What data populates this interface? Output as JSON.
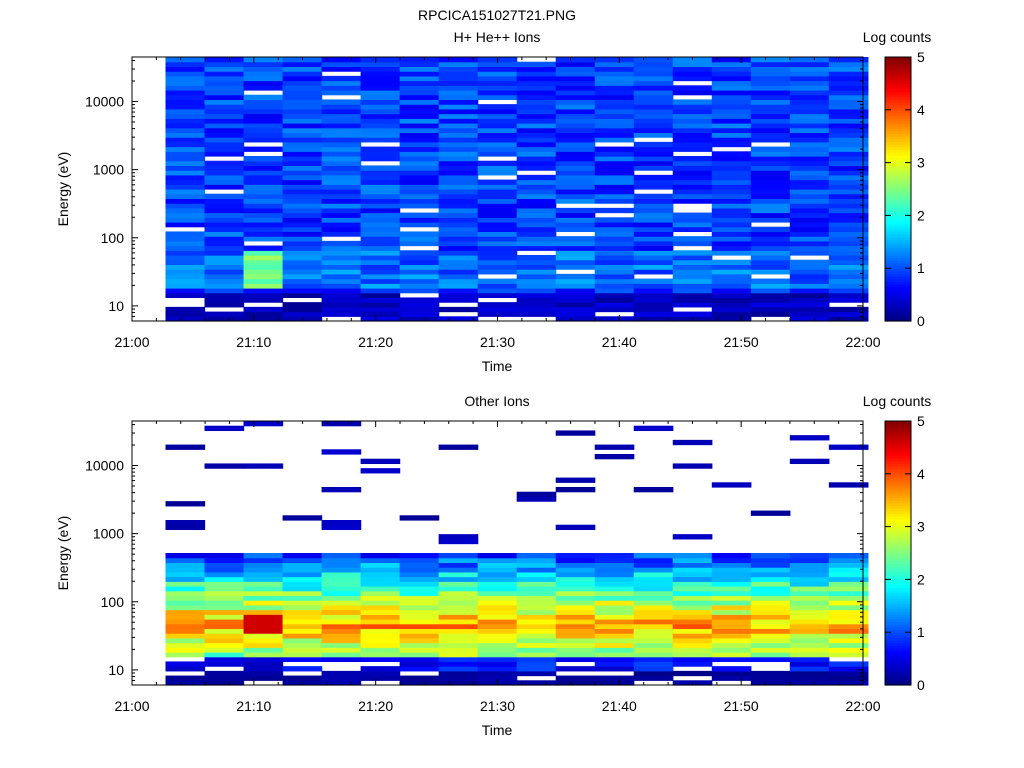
{
  "page": {
    "title": "RPCICA151027T21.PNG"
  },
  "chart_data": [
    {
      "type": "heatmap",
      "title": "H+ He++ Ions",
      "xlabel": "Time",
      "ylabel": "Energy (eV)",
      "x_ticks": [
        "21:00",
        "21:10",
        "21:20",
        "21:30",
        "21:40",
        "21:50",
        "22:00"
      ],
      "x_range_minutes": [
        0,
        60
      ],
      "y_scale": "log",
      "y_ticks": [
        10,
        100,
        1000,
        10000
      ],
      "y_range": [
        6,
        45000
      ],
      "colorbar": {
        "label": "Log counts",
        "range": [
          0,
          5
        ],
        "ticks": [
          0,
          1,
          2,
          3,
          4,
          5
        ]
      },
      "data_extent_minutes": [
        2.75,
        60.4
      ],
      "pattern": "mostly 0.5-1.5 log counts (blue) across all energies; low energies (~20-60 eV) near 21:10 reach ~1.5-2.5; sparse white (no data) rows"
    },
    {
      "type": "heatmap",
      "title": "Other Ions",
      "xlabel": "Time",
      "ylabel": "Energy (eV)",
      "x_ticks": [
        "21:00",
        "21:10",
        "21:20",
        "21:30",
        "21:40",
        "21:50",
        "22:00"
      ],
      "x_range_minutes": [
        0,
        60
      ],
      "y_scale": "log",
      "y_ticks": [
        10,
        100,
        1000,
        10000
      ],
      "y_range": [
        6,
        45000
      ],
      "colorbar": {
        "label": "Log counts",
        "range": [
          0,
          5
        ],
        "ticks": [
          0,
          1,
          2,
          3,
          4,
          5
        ]
      },
      "data_extent_minutes": [
        2.75,
        60.4
      ],
      "pattern": "dense counts below ~500 eV peaking ~3-4.5 log counts at 30-70 eV (max ~4.6 near 21:10); sparse low-count lines at higher energies"
    }
  ]
}
